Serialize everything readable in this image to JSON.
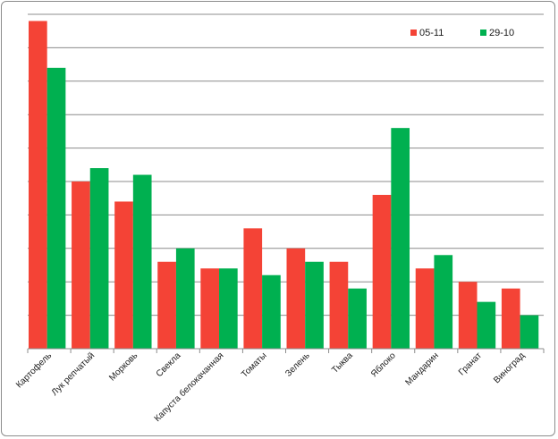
{
  "chart_data": {
    "type": "bar",
    "title": "",
    "xlabel": "",
    "ylabel": "",
    "categories": [
      "Картофель",
      "Лук репчатый",
      "Морковь",
      "Свекла",
      "Капуста белокачанная",
      "Томаты",
      "Зелень",
      "Тыква",
      "Яблоко",
      "Мандарин",
      "Гранат",
      "Виноград"
    ],
    "series": [
      {
        "name": "05-11",
        "color": "#f44336",
        "values": [
          9.8,
          5.0,
          4.4,
          2.6,
          2.4,
          3.6,
          3.0,
          2.6,
          4.6,
          2.4,
          2.0,
          1.8
        ]
      },
      {
        "name": "29-10",
        "color": "#00b050",
        "values": [
          8.4,
          5.4,
          5.2,
          3.0,
          2.4,
          2.2,
          2.6,
          1.8,
          6.6,
          2.8,
          1.4,
          1.0
        ]
      }
    ],
    "ylim": [
      0,
      10
    ],
    "y_tick_labels_shown": false,
    "grid": true,
    "legend_position": "top-right"
  }
}
